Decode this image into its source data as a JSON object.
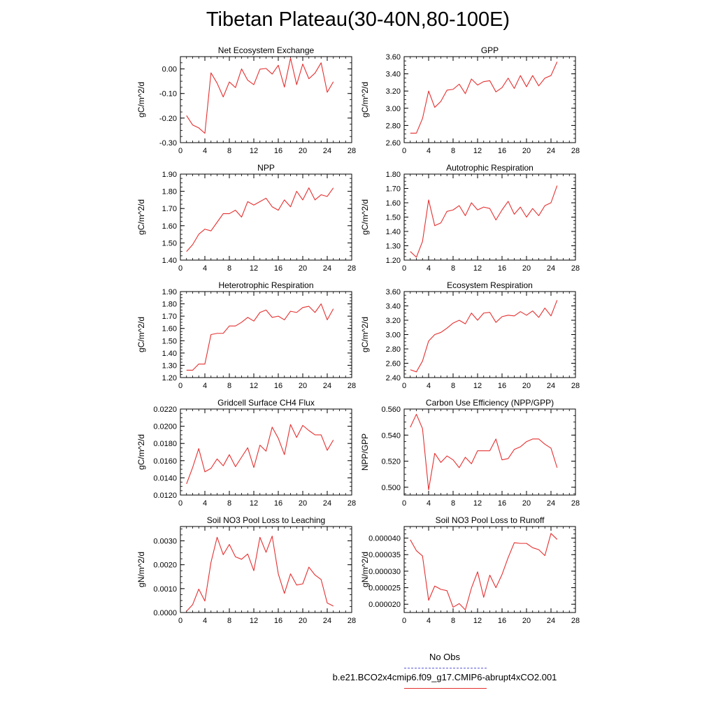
{
  "title": "Tibetan Plateau(30-40N,80-100E)",
  "legend": {
    "obs_label": "No Obs",
    "run_label": "b.e21.BCO2x4cmip6.f09_g17.CMIP6-abrupt4xCO2.001",
    "obs_color": "#5a5ad6",
    "run_color": "#e53030"
  },
  "chart_data": [
    {
      "type": "line",
      "title": "Net Ecosystem Exchange",
      "ylabel": "gC/m^2/d",
      "xlim": [
        0,
        28
      ],
      "ylim": [
        -0.3,
        0.05
      ],
      "xticks": [
        0,
        4,
        8,
        12,
        16,
        20,
        24,
        28
      ],
      "xtick_labels": [
        "0",
        "4",
        "8",
        "12",
        "16",
        "20",
        "24",
        "28"
      ],
      "yticks": [
        -0.3,
        -0.2,
        -0.1,
        0.0
      ],
      "ytick_labels": [
        "-0.30",
        "-0.20",
        "-0.10",
        "0.00"
      ],
      "x": [
        1,
        2,
        3,
        4,
        5,
        6,
        7,
        8,
        9,
        10,
        11,
        12,
        13,
        14,
        15,
        16,
        17,
        18,
        19,
        20,
        21,
        22,
        23,
        24,
        25
      ],
      "series": [
        {
          "values": [
            -0.19,
            -0.228,
            -0.24,
            -0.262,
            -0.016,
            -0.058,
            -0.114,
            -0.053,
            -0.076,
            0.0,
            -0.046,
            -0.064,
            -0.001,
            0.002,
            -0.021,
            0.015,
            -0.074,
            0.044,
            -0.064,
            0.02,
            -0.04,
            -0.017,
            0.025,
            -0.095,
            -0.052
          ]
        }
      ]
    },
    {
      "type": "line",
      "title": "GPP",
      "ylabel": "gC/m^2/d",
      "xlim": [
        0,
        28
      ],
      "ylim": [
        2.6,
        3.6
      ],
      "xticks": [
        0,
        4,
        8,
        12,
        16,
        20,
        24,
        28
      ],
      "xtick_labels": [
        "0",
        "4",
        "8",
        "12",
        "16",
        "20",
        "24",
        "28"
      ],
      "yticks": [
        2.6,
        2.8,
        3.0,
        3.2,
        3.4,
        3.6
      ],
      "ytick_labels": [
        "2.60",
        "2.80",
        "3.00",
        "3.20",
        "3.40",
        "3.60"
      ],
      "x": [
        1,
        2,
        3,
        4,
        5,
        6,
        7,
        8,
        9,
        10,
        11,
        12,
        13,
        14,
        15,
        16,
        17,
        18,
        19,
        20,
        21,
        22,
        23,
        24,
        25
      ],
      "series": [
        {
          "values": [
            2.71,
            2.71,
            2.88,
            3.2,
            3.01,
            3.08,
            3.21,
            3.22,
            3.28,
            3.17,
            3.34,
            3.27,
            3.31,
            3.32,
            3.19,
            3.24,
            3.35,
            3.23,
            3.38,
            3.25,
            3.38,
            3.26,
            3.35,
            3.38,
            3.54
          ]
        }
      ]
    },
    {
      "type": "line",
      "title": "NPP",
      "ylabel": "gC/m^2/d",
      "xlim": [
        0,
        28
      ],
      "ylim": [
        1.4,
        1.9
      ],
      "xticks": [
        0,
        4,
        8,
        12,
        16,
        20,
        24,
        28
      ],
      "xtick_labels": [
        "0",
        "4",
        "8",
        "12",
        "16",
        "20",
        "24",
        "28"
      ],
      "yticks": [
        1.4,
        1.5,
        1.6,
        1.7,
        1.8,
        1.9
      ],
      "ytick_labels": [
        "1.40",
        "1.50",
        "1.60",
        "1.70",
        "1.80",
        "1.90"
      ],
      "x": [
        1,
        2,
        3,
        4,
        5,
        6,
        7,
        8,
        9,
        10,
        11,
        12,
        13,
        14,
        15,
        16,
        17,
        18,
        19,
        20,
        21,
        22,
        23,
        24,
        25
      ],
      "series": [
        {
          "values": [
            1.45,
            1.49,
            1.55,
            1.58,
            1.57,
            1.62,
            1.67,
            1.67,
            1.69,
            1.65,
            1.74,
            1.72,
            1.74,
            1.76,
            1.71,
            1.69,
            1.75,
            1.71,
            1.8,
            1.75,
            1.82,
            1.75,
            1.78,
            1.77,
            1.82
          ]
        }
      ]
    },
    {
      "type": "line",
      "title": "Autotrophic Respiration",
      "ylabel": "gC/m^2/d",
      "xlim": [
        0,
        28
      ],
      "ylim": [
        1.2,
        1.8
      ],
      "xticks": [
        0,
        4,
        8,
        12,
        16,
        20,
        24,
        28
      ],
      "xtick_labels": [
        "0",
        "4",
        "8",
        "12",
        "16",
        "20",
        "24",
        "28"
      ],
      "yticks": [
        1.2,
        1.3,
        1.4,
        1.5,
        1.6,
        1.7,
        1.8
      ],
      "ytick_labels": [
        "1.20",
        "1.30",
        "1.40",
        "1.50",
        "1.60",
        "1.70",
        "1.80"
      ],
      "x": [
        1,
        2,
        3,
        4,
        5,
        6,
        7,
        8,
        9,
        10,
        11,
        12,
        13,
        14,
        15,
        16,
        17,
        18,
        19,
        20,
        21,
        22,
        23,
        24,
        25
      ],
      "series": [
        {
          "values": [
            1.26,
            1.22,
            1.33,
            1.62,
            1.44,
            1.46,
            1.54,
            1.55,
            1.58,
            1.51,
            1.6,
            1.55,
            1.57,
            1.56,
            1.48,
            1.55,
            1.61,
            1.52,
            1.57,
            1.5,
            1.56,
            1.51,
            1.58,
            1.6,
            1.72
          ]
        }
      ]
    },
    {
      "type": "line",
      "title": "Heterotrophic Respiration",
      "ylabel": "gC/m^2/d",
      "xlim": [
        0,
        28
      ],
      "ylim": [
        1.2,
        1.9
      ],
      "xticks": [
        0,
        4,
        8,
        12,
        16,
        20,
        24,
        28
      ],
      "xtick_labels": [
        "0",
        "4",
        "8",
        "12",
        "16",
        "20",
        "24",
        "28"
      ],
      "yticks": [
        1.2,
        1.3,
        1.4,
        1.5,
        1.6,
        1.7,
        1.8,
        1.9
      ],
      "ytick_labels": [
        "1.20",
        "1.30",
        "1.40",
        "1.50",
        "1.60",
        "1.70",
        "1.80",
        "1.90"
      ],
      "x": [
        1,
        2,
        3,
        4,
        5,
        6,
        7,
        8,
        9,
        10,
        11,
        12,
        13,
        14,
        15,
        16,
        17,
        18,
        19,
        20,
        21,
        22,
        23,
        24,
        25
      ],
      "series": [
        {
          "values": [
            1.26,
            1.26,
            1.31,
            1.31,
            1.55,
            1.56,
            1.56,
            1.62,
            1.62,
            1.65,
            1.69,
            1.66,
            1.73,
            1.75,
            1.69,
            1.7,
            1.67,
            1.74,
            1.73,
            1.77,
            1.78,
            1.73,
            1.8,
            1.67,
            1.76
          ]
        }
      ]
    },
    {
      "type": "line",
      "title": "Ecosystem Respiration",
      "ylabel": "gC/m^2/d",
      "xlim": [
        0,
        28
      ],
      "ylim": [
        2.4,
        3.6
      ],
      "xticks": [
        0,
        4,
        8,
        12,
        16,
        20,
        24,
        28
      ],
      "xtick_labels": [
        "0",
        "4",
        "8",
        "12",
        "16",
        "20",
        "24",
        "28"
      ],
      "yticks": [
        2.4,
        2.6,
        2.8,
        3.0,
        3.2,
        3.4,
        3.6
      ],
      "ytick_labels": [
        "2.40",
        "2.60",
        "2.80",
        "3.00",
        "3.20",
        "3.40",
        "3.60"
      ],
      "x": [
        1,
        2,
        3,
        4,
        5,
        6,
        7,
        8,
        9,
        10,
        11,
        12,
        13,
        14,
        15,
        16,
        17,
        18,
        19,
        20,
        21,
        22,
        23,
        24,
        25
      ],
      "series": [
        {
          "values": [
            2.51,
            2.48,
            2.63,
            2.91,
            3.0,
            3.03,
            3.09,
            3.16,
            3.2,
            3.15,
            3.3,
            3.2,
            3.3,
            3.31,
            3.17,
            3.25,
            3.27,
            3.26,
            3.32,
            3.27,
            3.33,
            3.24,
            3.37,
            3.26,
            3.48
          ]
        }
      ]
    },
    {
      "type": "line",
      "title": "Gridcell Surface CH4 Flux",
      "ylabel": "gC/m^2/d",
      "xlim": [
        0,
        28
      ],
      "ylim": [
        0.012,
        0.022
      ],
      "xticks": [
        0,
        4,
        8,
        12,
        16,
        20,
        24,
        28
      ],
      "xtick_labels": [
        "0",
        "4",
        "8",
        "12",
        "16",
        "20",
        "24",
        "28"
      ],
      "yticks": [
        0.012,
        0.014,
        0.016,
        0.018,
        0.02,
        0.022
      ],
      "ytick_labels": [
        "0.0120",
        "0.0140",
        "0.0160",
        "0.0180",
        "0.0200",
        "0.0220"
      ],
      "x": [
        1,
        2,
        3,
        4,
        5,
        6,
        7,
        8,
        9,
        10,
        11,
        12,
        13,
        14,
        15,
        16,
        17,
        18,
        19,
        20,
        21,
        22,
        23,
        24,
        25
      ],
      "series": [
        {
          "values": [
            0.0133,
            0.0152,
            0.0174,
            0.0147,
            0.0151,
            0.0162,
            0.0154,
            0.0167,
            0.0153,
            0.0164,
            0.0175,
            0.0152,
            0.0178,
            0.0171,
            0.0199,
            0.0186,
            0.0167,
            0.0202,
            0.0187,
            0.0201,
            0.0195,
            0.019,
            0.019,
            0.0172,
            0.0184
          ]
        }
      ]
    },
    {
      "type": "line",
      "title": "Carbon Use Efficiency (NPP/GPP)",
      "ylabel": "NPP/GPP",
      "xlim": [
        0,
        28
      ],
      "ylim": [
        0.494,
        0.56
      ],
      "xticks": [
        0,
        4,
        8,
        12,
        16,
        20,
        24,
        28
      ],
      "xtick_labels": [
        "0",
        "4",
        "8",
        "12",
        "16",
        "20",
        "24",
        "28"
      ],
      "yticks": [
        0.5,
        0.52,
        0.54,
        0.56
      ],
      "ytick_labels": [
        "0.500",
        "0.520",
        "0.540",
        "0.560"
      ],
      "x": [
        1,
        2,
        3,
        4,
        5,
        6,
        7,
        8,
        9,
        10,
        11,
        12,
        13,
        14,
        15,
        16,
        17,
        18,
        19,
        20,
        21,
        22,
        23,
        24,
        25
      ],
      "series": [
        {
          "values": [
            0.546,
            0.556,
            0.545,
            0.498,
            0.526,
            0.519,
            0.524,
            0.521,
            0.515,
            0.523,
            0.518,
            0.528,
            0.528,
            0.528,
            0.537,
            0.521,
            0.522,
            0.529,
            0.531,
            0.535,
            0.537,
            0.537,
            0.533,
            0.53,
            0.515
          ]
        }
      ]
    },
    {
      "type": "line",
      "title": "Soil NO3 Pool Loss to Leaching",
      "ylabel": "gN/m^2/d",
      "xlim": [
        0,
        28
      ],
      "ylim": [
        0.0,
        0.0036
      ],
      "xticks": [
        0,
        4,
        8,
        12,
        16,
        20,
        24,
        28
      ],
      "xtick_labels": [
        "0",
        "4",
        "8",
        "12",
        "16",
        "20",
        "24",
        "28"
      ],
      "yticks": [
        0.0,
        0.001,
        0.002,
        0.003
      ],
      "ytick_labels": [
        "0.0000",
        "0.0010",
        "0.0020",
        "0.0030"
      ],
      "x": [
        1,
        2,
        3,
        4,
        5,
        6,
        7,
        8,
        9,
        10,
        11,
        12,
        13,
        14,
        15,
        16,
        17,
        18,
        19,
        20,
        21,
        22,
        23,
        24,
        25
      ],
      "series": [
        {
          "values": [
            5e-05,
            0.00033,
            0.00098,
            0.00048,
            0.0021,
            0.00315,
            0.00242,
            0.00285,
            0.00233,
            0.00223,
            0.00245,
            0.00175,
            0.00315,
            0.00252,
            0.0032,
            0.00162,
            0.0008,
            0.00162,
            0.00115,
            0.0012,
            0.0019,
            0.00157,
            0.00138,
            0.0004,
            0.00027
          ]
        }
      ]
    },
    {
      "type": "line",
      "title": "Soil NO3 Pool Loss to Runoff",
      "ylabel": "gN/m^2/d",
      "xlim": [
        0,
        28
      ],
      "ylim": [
        1.75e-05,
        4.35e-05
      ],
      "xticks": [
        0,
        4,
        8,
        12,
        16,
        20,
        24,
        28
      ],
      "xtick_labels": [
        "0",
        "4",
        "8",
        "12",
        "16",
        "20",
        "24",
        "28"
      ],
      "yticks": [
        2e-05,
        2.5e-05,
        3e-05,
        3.5e-05,
        4e-05
      ],
      "ytick_labels": [
        "0.000020",
        "0.000025",
        "0.000030",
        "0.000035",
        "0.000040"
      ],
      "x": [
        1,
        2,
        3,
        4,
        5,
        6,
        7,
        8,
        9,
        10,
        11,
        12,
        13,
        14,
        15,
        16,
        17,
        18,
        19,
        20,
        21,
        22,
        23,
        24,
        25
      ],
      "series": [
        {
          "values": [
            3.95e-05,
            3.62e-05,
            3.46e-05,
            2.12e-05,
            2.55e-05,
            2.45e-05,
            2.41e-05,
            1.91e-05,
            2.02e-05,
            1.83e-05,
            2.49e-05,
            2.98e-05,
            2.21e-05,
            2.88e-05,
            2.5e-05,
            2.9e-05,
            3.41e-05,
            3.86e-05,
            3.84e-05,
            3.84e-05,
            3.71e-05,
            3.65e-05,
            3.47e-05,
            4.14e-05,
            3.96e-05
          ]
        }
      ]
    }
  ]
}
